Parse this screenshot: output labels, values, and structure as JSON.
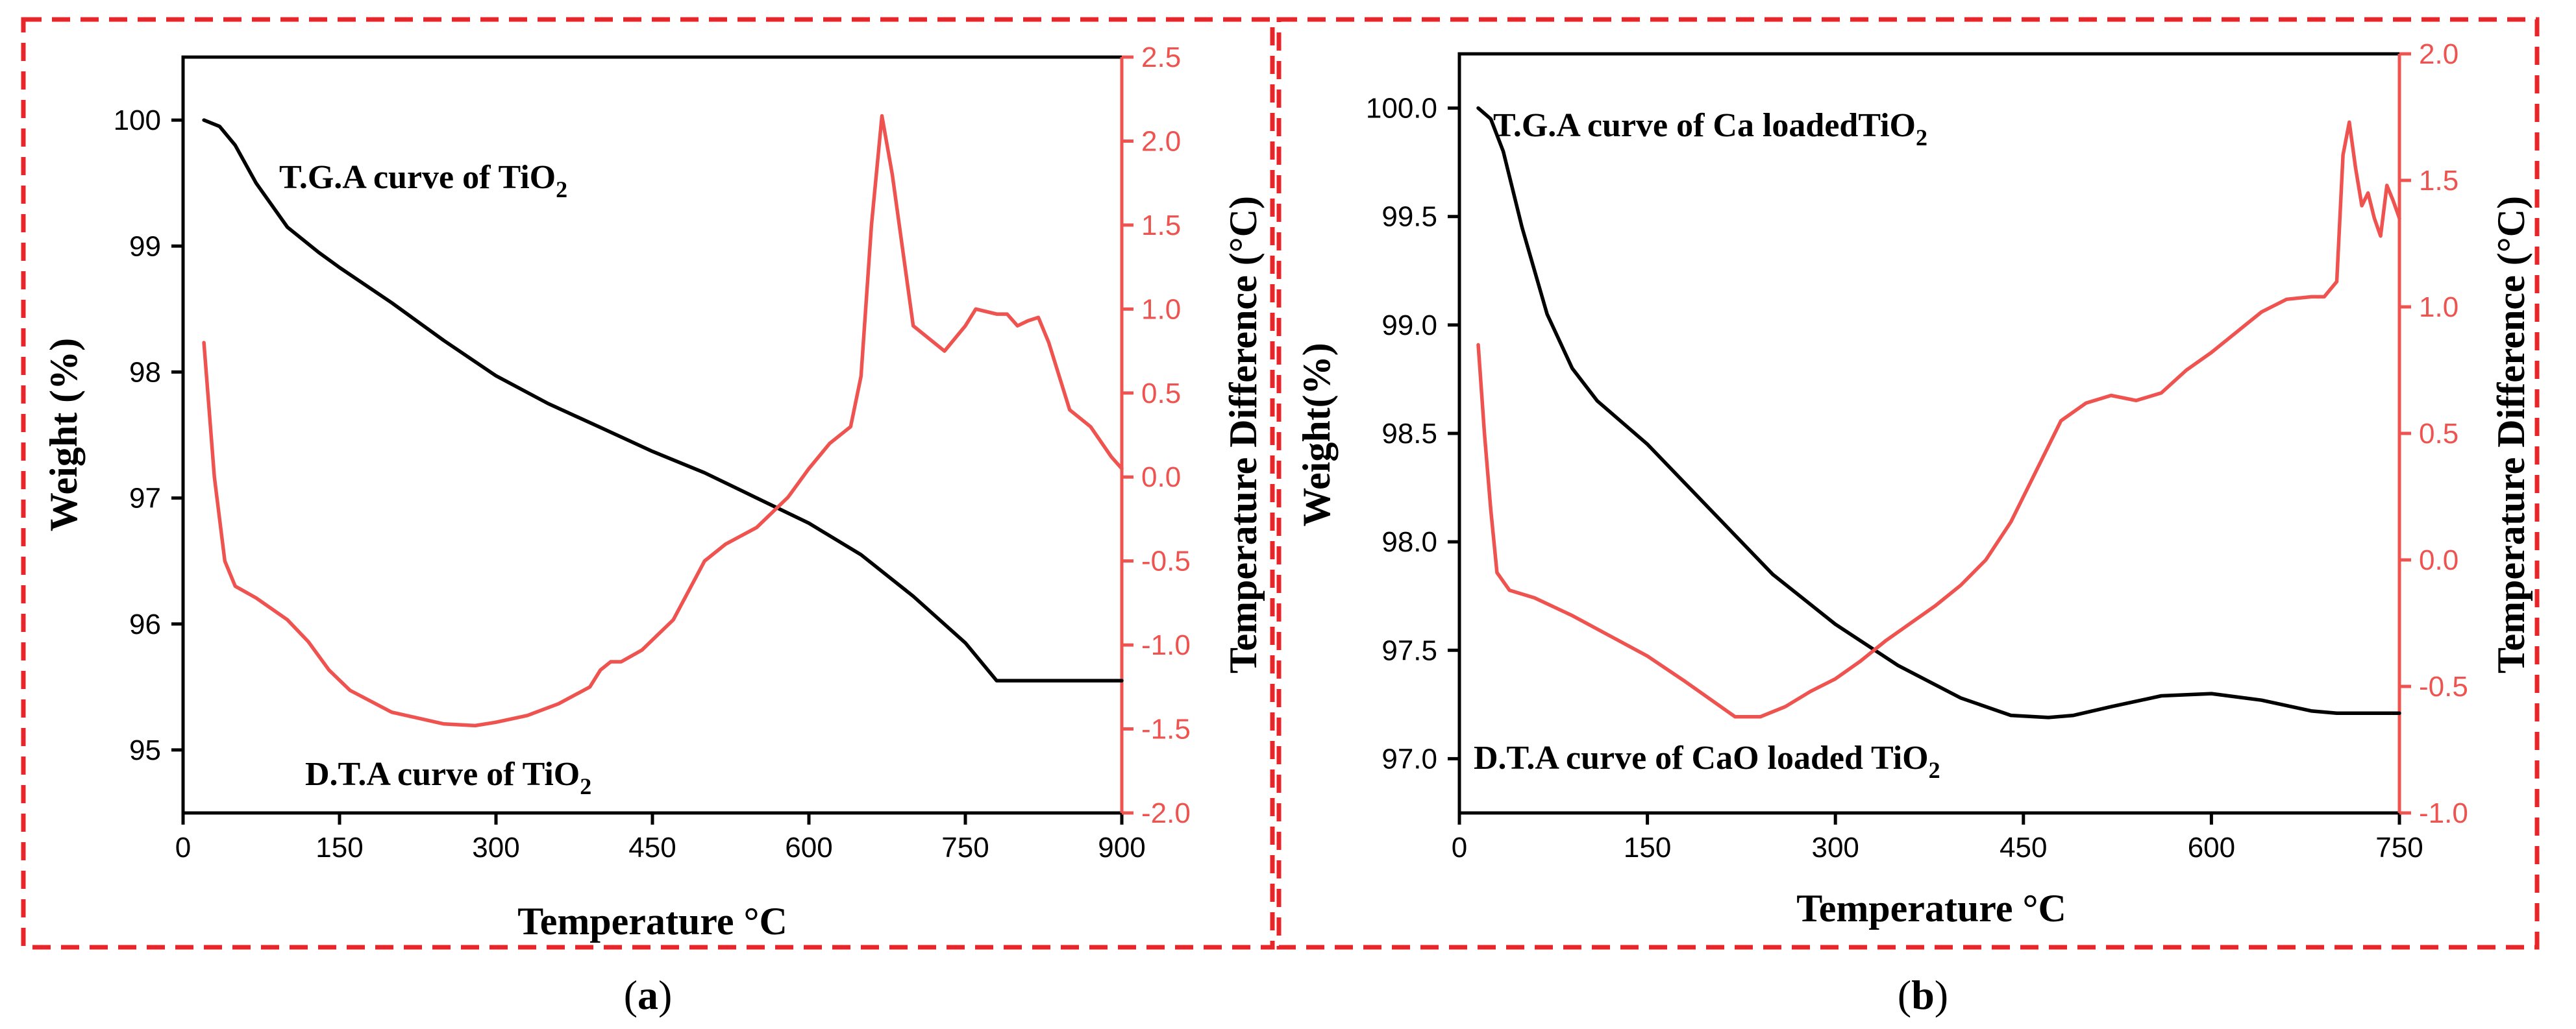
{
  "chart_data": [
    {
      "id": "a",
      "type": "line",
      "caption_letter": "a",
      "xlabel": "Temperature °C",
      "ylabel_left": "Weight (%)",
      "ylabel_right": "Temperature Difference  (°C)",
      "xlim": [
        0,
        900
      ],
      "ylim_left": [
        94.5,
        100.5
      ],
      "ylim_right": [
        -2.0,
        2.5
      ],
      "x_ticks": [
        0,
        150,
        300,
        450,
        600,
        750,
        900
      ],
      "x_tick_labels": [
        "0",
        "150",
        "300",
        "450",
        "600",
        "750",
        "900"
      ],
      "y_left_ticks": [
        95,
        96,
        97,
        98,
        99,
        100
      ],
      "y_left_tick_labels": [
        "95",
        "96",
        "97",
        "98",
        "99",
        "100"
      ],
      "y_right_ticks": [
        -2.0,
        -1.5,
        -1.0,
        -0.5,
        0.0,
        0.5,
        1.0,
        1.5,
        2.0,
        2.5
      ],
      "y_right_tick_labels": [
        "-2.0",
        "-1.5",
        "-1.0",
        "-0.5",
        "0.0",
        "0.5",
        "1.0",
        "1.5",
        "2.0",
        "2.5"
      ],
      "annotations": [
        {
          "main": "T.G.A curve of TiO",
          "sub": "2"
        },
        {
          "main": "D.T.A curve of TiO",
          "sub": "2"
        }
      ],
      "series": [
        {
          "name": "TGA",
          "axis": "left",
          "color": "#000000",
          "x": [
            20,
            35,
            50,
            70,
            100,
            130,
            150,
            200,
            250,
            300,
            350,
            400,
            450,
            500,
            550,
            600,
            650,
            700,
            750,
            780,
            800,
            900
          ],
          "y": [
            100.0,
            99.95,
            99.8,
            99.5,
            99.15,
            98.95,
            98.83,
            98.55,
            98.25,
            97.97,
            97.75,
            97.56,
            97.37,
            97.2,
            97.0,
            96.8,
            96.55,
            96.22,
            95.85,
            95.55,
            95.55,
            95.55
          ]
        },
        {
          "name": "DTA",
          "axis": "right",
          "color": "#ef5350",
          "x": [
            20,
            30,
            40,
            50,
            70,
            100,
            120,
            140,
            160,
            200,
            250,
            280,
            300,
            330,
            360,
            390,
            400,
            410,
            420,
            440,
            470,
            500,
            520,
            550,
            580,
            600,
            620,
            640,
            650,
            660,
            670,
            680,
            700,
            730,
            750,
            760,
            780,
            790,
            800,
            810,
            820,
            830,
            850,
            870,
            890,
            900
          ],
          "y": [
            0.8,
            0.0,
            -0.5,
            -0.65,
            -0.72,
            -0.85,
            -0.98,
            -1.15,
            -1.27,
            -1.4,
            -1.47,
            -1.48,
            -1.46,
            -1.42,
            -1.35,
            -1.25,
            -1.15,
            -1.1,
            -1.1,
            -1.03,
            -0.85,
            -0.5,
            -0.4,
            -0.3,
            -0.12,
            0.05,
            0.2,
            0.3,
            0.6,
            1.5,
            2.15,
            1.8,
            0.9,
            0.75,
            0.9,
            1.0,
            0.97,
            0.97,
            0.9,
            0.93,
            0.95,
            0.8,
            0.4,
            0.3,
            0.12,
            0.05
          ]
        }
      ]
    },
    {
      "id": "b",
      "type": "line",
      "caption_letter": "b",
      "xlabel": "Temperature °C",
      "ylabel_left": "Weight(%)",
      "ylabel_right": "Temperature Difference  (°C)",
      "xlim": [
        0,
        750
      ],
      "ylim_left": [
        96.75,
        100.25
      ],
      "ylim_right": [
        -1.0,
        2.0
      ],
      "x_ticks": [
        0,
        150,
        300,
        450,
        600,
        750
      ],
      "x_tick_labels": [
        "0",
        "150",
        "300",
        "450",
        "600",
        "750"
      ],
      "y_left_ticks": [
        97.0,
        97.5,
        98.0,
        98.5,
        99.0,
        99.5,
        100.0
      ],
      "y_left_tick_labels": [
        "97.0",
        "97.5",
        "98.0",
        "98.5",
        "99.0",
        "99.5",
        "100.0"
      ],
      "y_right_ticks": [
        -1.0,
        -0.5,
        0.0,
        0.5,
        1.0,
        1.5,
        2.0
      ],
      "y_right_tick_labels": [
        "-1.0",
        "-0.5",
        "0.0",
        "0.5",
        "1.0",
        "1.5",
        "2.0"
      ],
      "annotations": [
        {
          "main": "T.G.A curve of Ca loadedTiO",
          "sub": "2"
        },
        {
          "main": "D.T.A curve of CaO loaded TiO",
          "sub": "2"
        }
      ],
      "series": [
        {
          "name": "TGA",
          "axis": "left",
          "color": "#000000",
          "x": [
            15,
            25,
            35,
            50,
            70,
            90,
            110,
            130,
            150,
            200,
            250,
            300,
            350,
            400,
            440,
            470,
            490,
            520,
            560,
            600,
            640,
            680,
            700,
            750
          ],
          "y": [
            100.0,
            99.95,
            99.8,
            99.45,
            99.05,
            98.8,
            98.65,
            98.55,
            98.45,
            98.15,
            97.85,
            97.62,
            97.43,
            97.28,
            97.2,
            97.19,
            97.2,
            97.24,
            97.29,
            97.3,
            97.27,
            97.22,
            97.21,
            97.21
          ]
        },
        {
          "name": "DTA",
          "axis": "right",
          "color": "#ef5350",
          "x": [
            15,
            20,
            25,
            30,
            40,
            60,
            90,
            120,
            150,
            180,
            200,
            220,
            240,
            260,
            280,
            300,
            320,
            340,
            360,
            380,
            400,
            420,
            440,
            460,
            480,
            500,
            520,
            540,
            560,
            580,
            600,
            620,
            640,
            660,
            680,
            690,
            700,
            705,
            710,
            715,
            720,
            725,
            730,
            735,
            740,
            745,
            750
          ],
          "y": [
            0.85,
            0.5,
            0.2,
            -0.05,
            -0.12,
            -0.15,
            -0.22,
            -0.3,
            -0.38,
            -0.48,
            -0.55,
            -0.62,
            -0.62,
            -0.58,
            -0.52,
            -0.47,
            -0.4,
            -0.32,
            -0.25,
            -0.18,
            -0.1,
            0.0,
            0.15,
            0.35,
            0.55,
            0.62,
            0.65,
            0.63,
            0.66,
            0.75,
            0.82,
            0.9,
            0.98,
            1.03,
            1.04,
            1.04,
            1.1,
            1.6,
            1.73,
            1.55,
            1.4,
            1.45,
            1.35,
            1.28,
            1.48,
            1.42,
            1.35
          ]
        }
      ]
    }
  ]
}
